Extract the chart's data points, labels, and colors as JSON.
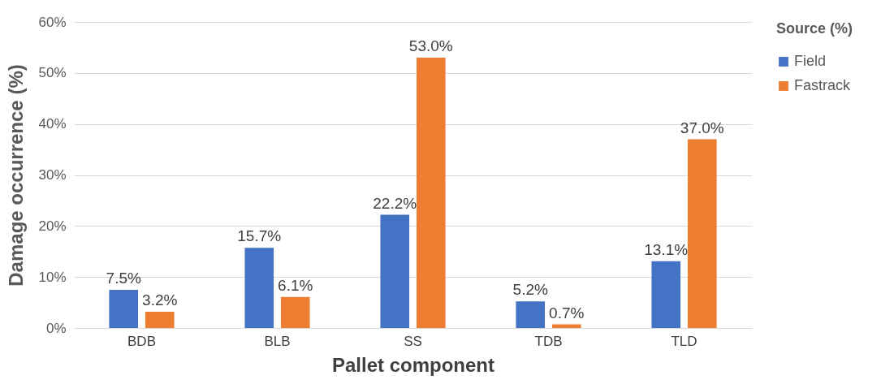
{
  "chart_data": {
    "type": "bar",
    "xlabel": "Pallet component",
    "ylabel": "Damage occurrence (%)",
    "legend_title": "Source (%)",
    "legend": "right",
    "grid": "y",
    "categories": [
      "BDB",
      "BLB",
      "SS",
      "TDB",
      "TLD"
    ],
    "ylim": [
      0,
      60
    ],
    "yticks": [
      {
        "value": 0,
        "label": "0%"
      },
      {
        "value": 10,
        "label": "10%"
      },
      {
        "value": 20,
        "label": "20%"
      },
      {
        "value": 30,
        "label": "30%"
      },
      {
        "value": 40,
        "label": "40%"
      },
      {
        "value": 50,
        "label": "50%"
      },
      {
        "value": 60,
        "label": "60%"
      }
    ],
    "series": [
      {
        "name": "Field",
        "color": "#4472c4",
        "values": [
          7.5,
          15.7,
          22.2,
          5.2,
          13.1
        ],
        "value_labels": [
          "7.5%",
          "15.7%",
          "22.2%",
          "5.2%",
          "13.1%"
        ]
      },
      {
        "name": "Fastrack",
        "color": "#ed7d31",
        "values": [
          3.2,
          6.1,
          53.0,
          0.7,
          37.0
        ],
        "value_labels": [
          "3.2%",
          "6.1%",
          "53.0%",
          "0.7%",
          "37.0%"
        ]
      }
    ]
  }
}
